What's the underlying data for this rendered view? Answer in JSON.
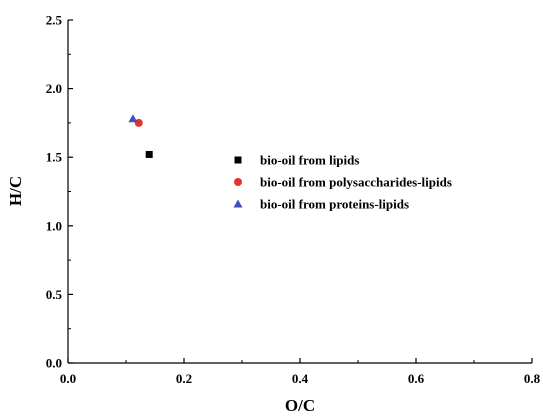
{
  "chart_data": {
    "type": "scatter",
    "xlabel": "O/C",
    "ylabel": "H/C",
    "xlim": [
      0.0,
      0.8
    ],
    "ylim": [
      0.0,
      2.5
    ],
    "x_ticks": [
      "0.0",
      "0.2",
      "0.4",
      "0.6",
      "0.8"
    ],
    "y_ticks": [
      "0.0",
      "0.5",
      "1.0",
      "1.5",
      "2.0",
      "2.5"
    ],
    "grid": false,
    "legend_position": "center-right",
    "series": [
      {
        "name": "bio-oil from lipids",
        "marker": "square",
        "color": "#000000",
        "x": [
          0.14
        ],
        "y": [
          1.52
        ]
      },
      {
        "name": "bio-oil from polysaccharides-lipids",
        "marker": "circle",
        "color": "#e8312f",
        "x": [
          0.122
        ],
        "y": [
          1.75
        ]
      },
      {
        "name": "bio-oil from proteins-lipids",
        "marker": "triangle",
        "color": "#3d52b8",
        "x": [
          0.112
        ],
        "y": [
          1.78
        ]
      }
    ]
  }
}
